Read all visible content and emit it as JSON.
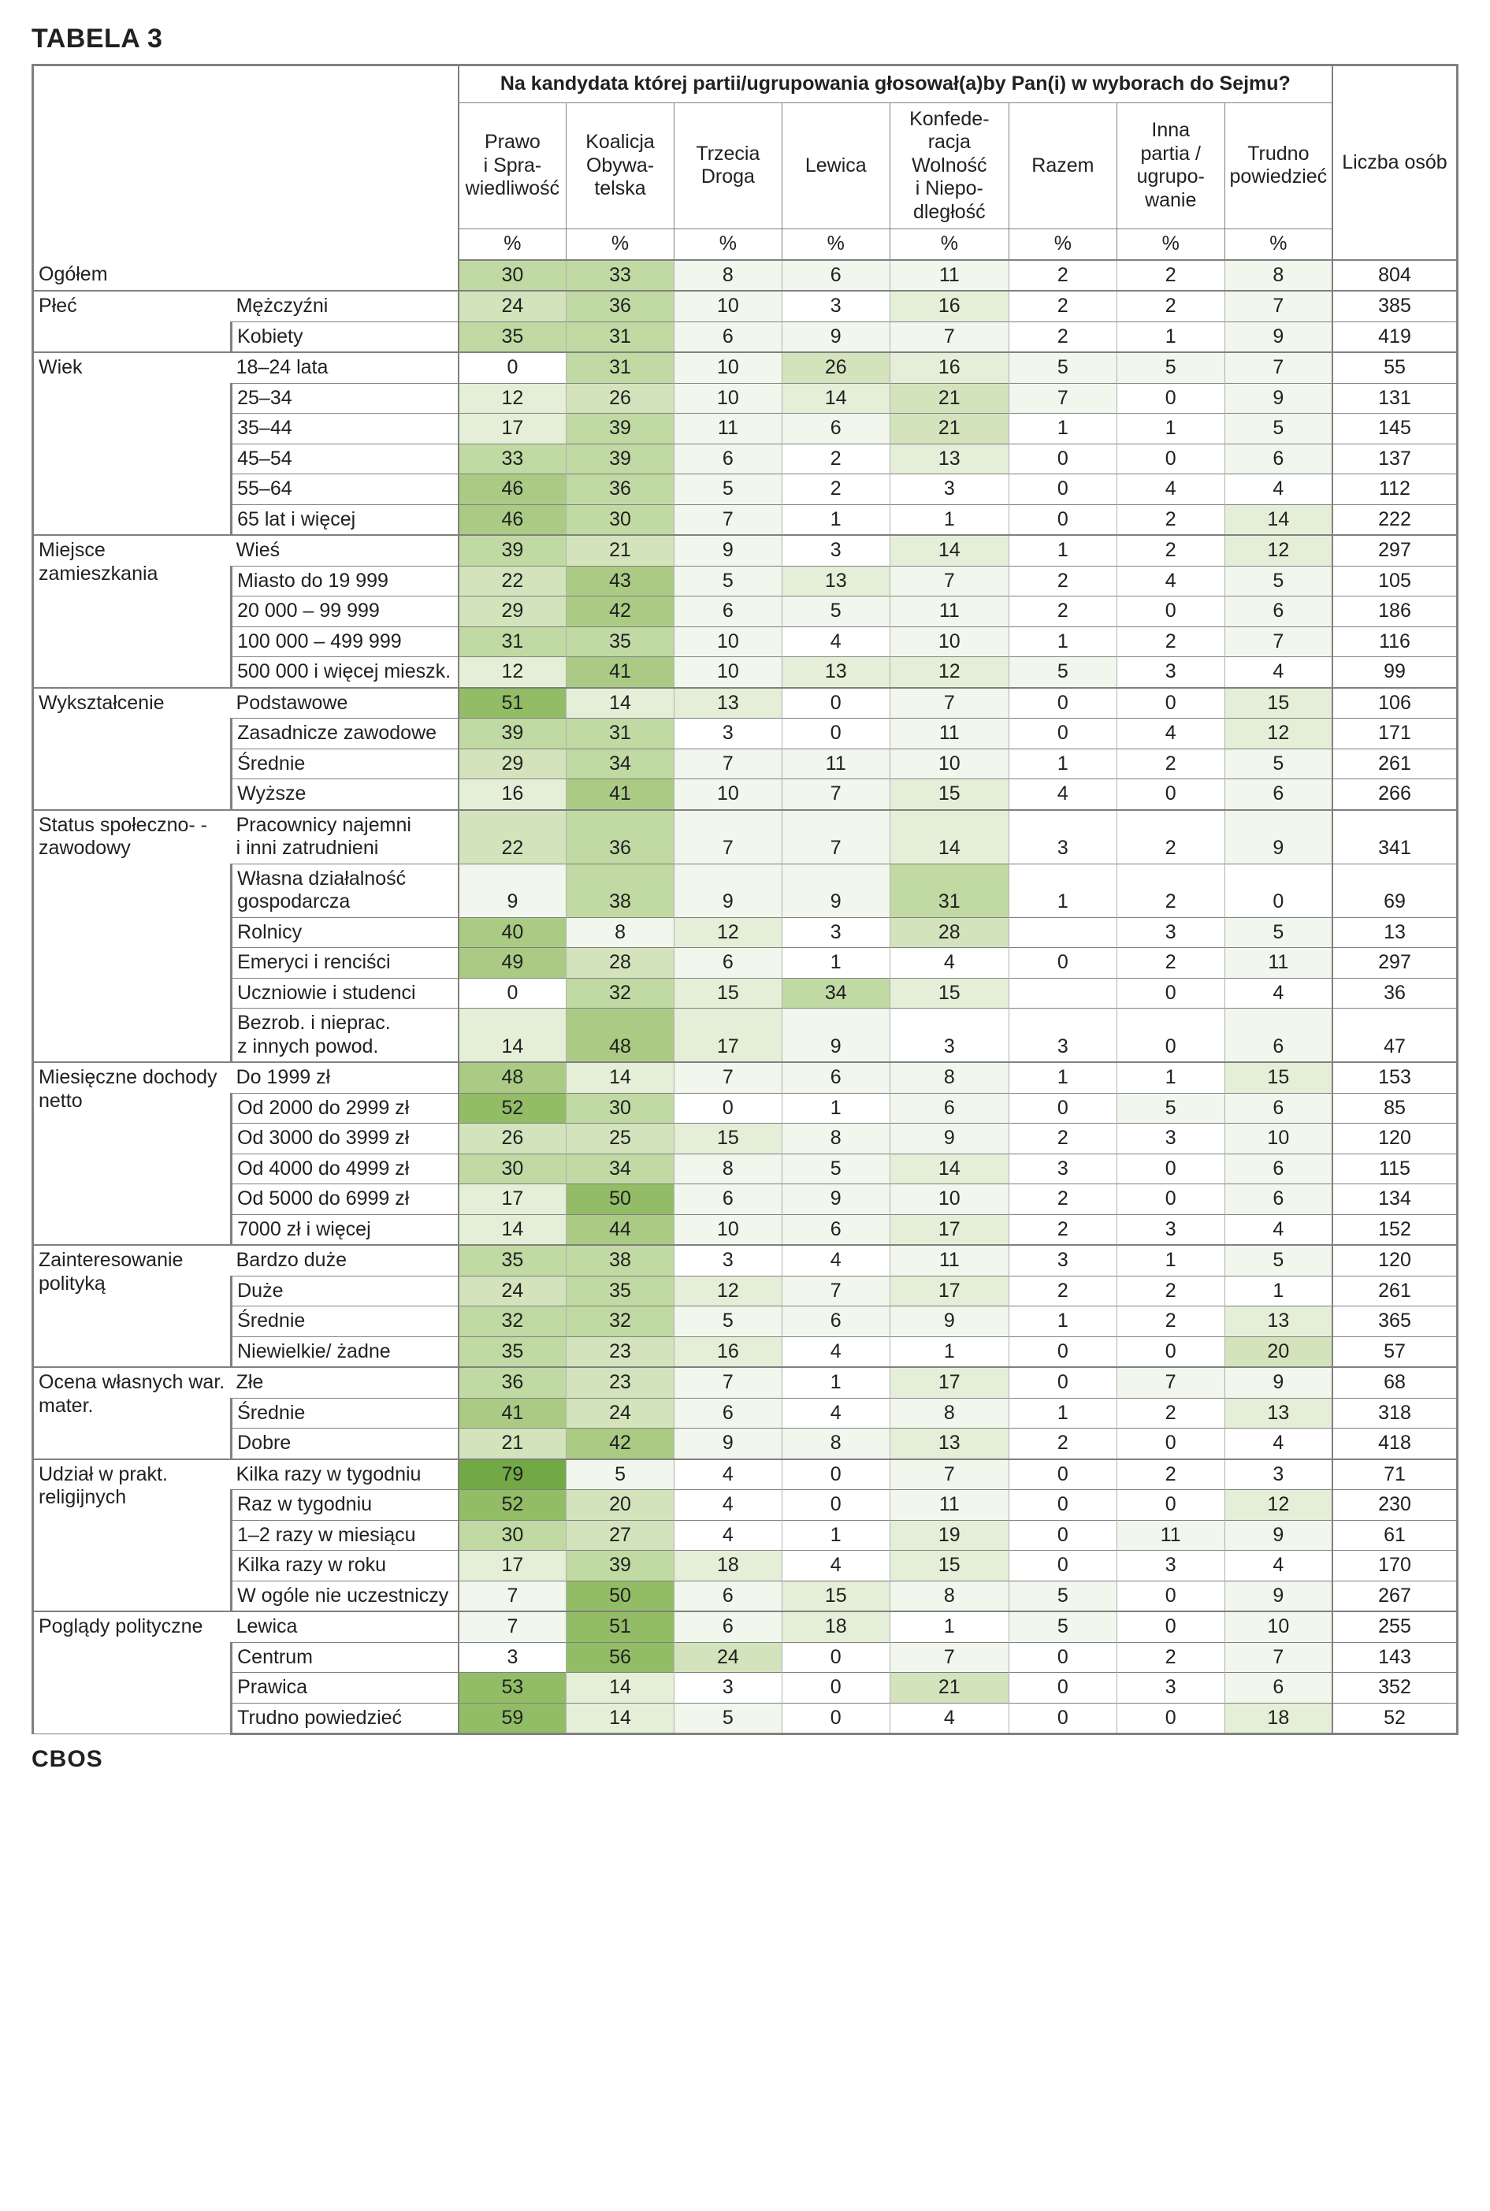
{
  "title": "TABELA 3",
  "footer": "CBOS",
  "question": "Na kandydata której partii/ugrupowania głosował(a)by Pan(i) w wyborach do Sejmu?",
  "liczba_label": "Liczba osób",
  "pct_symbol": "%",
  "columns": [
    "Prawo i Spra­wiedli­wość",
    "Koalicja Obywa­telska",
    "Trzecia Droga",
    "Lewica",
    "Konfede­racja Wolność i Niepo­dległość",
    "Razem",
    "Inna partia / ugrupo­wanie",
    "Trudno powie­dzieć"
  ],
  "col_widths_pct": [
    14,
    16,
    7.6,
    7.6,
    7.6,
    7.6,
    8.4,
    7.6,
    7.6,
    7.6,
    8.8
  ],
  "heat_scale": {
    "colors": [
      "#ffffff",
      "#f1f7ed",
      "#e5efd8",
      "#d3e4bd",
      "#c1d9a3",
      "#abcb85",
      "#92bd66",
      "#72a946"
    ],
    "thresholds": [
      0,
      5,
      12,
      20,
      30,
      40,
      50,
      60
    ]
  },
  "groups": [
    {
      "label": "",
      "rows": [
        {
          "label": "Ogółem",
          "v": [
            30,
            33,
            8,
            6,
            11,
            2,
            2,
            8
          ],
          "n": 804
        }
      ]
    },
    {
      "label": "Płeć",
      "rows": [
        {
          "label": "Mężczyźni",
          "v": [
            24,
            36,
            10,
            3,
            16,
            2,
            2,
            7
          ],
          "n": 385
        },
        {
          "label": "Kobiety",
          "v": [
            35,
            31,
            6,
            9,
            7,
            2,
            1,
            9
          ],
          "n": 419
        }
      ]
    },
    {
      "label": "Wiek",
      "rows": [
        {
          "label": "18–24 lata",
          "v": [
            0,
            31,
            10,
            26,
            16,
            5,
            5,
            7
          ],
          "n": 55
        },
        {
          "label": "25–34",
          "v": [
            12,
            26,
            10,
            14,
            21,
            7,
            0,
            9
          ],
          "n": 131
        },
        {
          "label": "35–44",
          "v": [
            17,
            39,
            11,
            6,
            21,
            1,
            1,
            5
          ],
          "n": 145
        },
        {
          "label": "45–54",
          "v": [
            33,
            39,
            6,
            2,
            13,
            0,
            0,
            6
          ],
          "n": 137
        },
        {
          "label": "55–64",
          "v": [
            46,
            36,
            5,
            2,
            3,
            0,
            4,
            4
          ],
          "n": 112
        },
        {
          "label": "65 lat i więcej",
          "v": [
            46,
            30,
            7,
            1,
            1,
            0,
            2,
            14
          ],
          "n": 222
        }
      ]
    },
    {
      "label": "Miejsce zamieszkania",
      "rows": [
        {
          "label": "Wieś",
          "v": [
            39,
            21,
            9,
            3,
            14,
            1,
            2,
            12
          ],
          "n": 297
        },
        {
          "label": "Miasto do 19 999",
          "v": [
            22,
            43,
            5,
            13,
            7,
            2,
            4,
            5
          ],
          "n": 105
        },
        {
          "label": "20 000 – 99 999",
          "v": [
            29,
            42,
            6,
            5,
            11,
            2,
            0,
            6
          ],
          "n": 186
        },
        {
          "label": "100 000 – 499 999",
          "v": [
            31,
            35,
            10,
            4,
            10,
            1,
            2,
            7
          ],
          "n": 116
        },
        {
          "label": "500 000 i więcej mieszk.",
          "v": [
            12,
            41,
            10,
            13,
            12,
            5,
            3,
            4
          ],
          "n": 99
        }
      ]
    },
    {
      "label": "Wykształcenie",
      "rows": [
        {
          "label": "Podstawowe",
          "v": [
            51,
            14,
            13,
            0,
            7,
            0,
            0,
            15
          ],
          "n": 106
        },
        {
          "label": "Zasadnicze zawodowe",
          "v": [
            39,
            31,
            3,
            0,
            11,
            0,
            4,
            12
          ],
          "n": 171
        },
        {
          "label": "Średnie",
          "v": [
            29,
            34,
            7,
            11,
            10,
            1,
            2,
            5
          ],
          "n": 261
        },
        {
          "label": "Wyższe",
          "v": [
            16,
            41,
            10,
            7,
            15,
            4,
            0,
            6
          ],
          "n": 266
        }
      ]
    },
    {
      "label": "Status społeczno- -zawodowy",
      "rows": [
        {
          "label": "Pracownicy najemni i inni zatrudnieni",
          "v": [
            22,
            36,
            7,
            7,
            14,
            3,
            2,
            9
          ],
          "n": 341
        },
        {
          "label": "Własna działalność gospodarcza",
          "v": [
            9,
            38,
            9,
            9,
            31,
            1,
            2,
            0
          ],
          "n": 69
        },
        {
          "label": "Rolnicy",
          "v": [
            40,
            8,
            12,
            3,
            28,
            null,
            3,
            5
          ],
          "n": 13
        },
        {
          "label": "Emeryci i renciści",
          "v": [
            49,
            28,
            6,
            1,
            4,
            0,
            2,
            11
          ],
          "n": 297
        },
        {
          "label": "Uczniowie i studenci",
          "v": [
            0,
            32,
            15,
            34,
            15,
            null,
            0,
            4
          ],
          "n": 36
        },
        {
          "label": "Bezrob. i nieprac. z innych powod.",
          "v": [
            14,
            48,
            17,
            9,
            3,
            3,
            0,
            6
          ],
          "n": 47
        }
      ]
    },
    {
      "label": "Miesięczne dochody netto",
      "rows": [
        {
          "label": "Do 1999 zł",
          "v": [
            48,
            14,
            7,
            6,
            8,
            1,
            1,
            15
          ],
          "n": 153
        },
        {
          "label": "Od 2000 do 2999 zł",
          "v": [
            52,
            30,
            0,
            1,
            6,
            0,
            5,
            6
          ],
          "n": 85
        },
        {
          "label": "Od 3000 do 3999 zł",
          "v": [
            26,
            25,
            15,
            8,
            9,
            2,
            3,
            10
          ],
          "n": 120
        },
        {
          "label": "Od 4000 do 4999 zł",
          "v": [
            30,
            34,
            8,
            5,
            14,
            3,
            0,
            6
          ],
          "n": 115
        },
        {
          "label": "Od 5000 do 6999 zł",
          "v": [
            17,
            50,
            6,
            9,
            10,
            2,
            0,
            6
          ],
          "n": 134
        },
        {
          "label": "7000 zł i więcej",
          "v": [
            14,
            44,
            10,
            6,
            17,
            2,
            3,
            4
          ],
          "n": 152
        }
      ]
    },
    {
      "label": "Zaintereso­wanie polityką",
      "rows": [
        {
          "label": "Bardzo duże",
          "v": [
            35,
            38,
            3,
            4,
            11,
            3,
            1,
            5
          ],
          "n": 120
        },
        {
          "label": "Duże",
          "v": [
            24,
            35,
            12,
            7,
            17,
            2,
            2,
            1
          ],
          "n": 261
        },
        {
          "label": "Średnie",
          "v": [
            32,
            32,
            5,
            6,
            9,
            1,
            2,
            13
          ],
          "n": 365
        },
        {
          "label": "Niewielkie/ żadne",
          "v": [
            35,
            23,
            16,
            4,
            1,
            0,
            0,
            20
          ],
          "n": 57
        }
      ]
    },
    {
      "label": "Ocena własnych war. mater.",
      "rows": [
        {
          "label": "Złe",
          "v": [
            36,
            23,
            7,
            1,
            17,
            0,
            7,
            9
          ],
          "n": 68
        },
        {
          "label": "Średnie",
          "v": [
            41,
            24,
            6,
            4,
            8,
            1,
            2,
            13
          ],
          "n": 318
        },
        {
          "label": "Dobre",
          "v": [
            21,
            42,
            9,
            8,
            13,
            2,
            0,
            4
          ],
          "n": 418
        }
      ]
    },
    {
      "label": "Udział w prakt. religijnych",
      "rows": [
        {
          "label": "Kilka razy w tygodniu",
          "v": [
            79,
            5,
            4,
            0,
            7,
            0,
            2,
            3
          ],
          "n": 71
        },
        {
          "label": "Raz w tygodniu",
          "v": [
            52,
            20,
            4,
            0,
            11,
            0,
            0,
            12
          ],
          "n": 230
        },
        {
          "label": "1–2 razy w miesiącu",
          "v": [
            30,
            27,
            4,
            1,
            19,
            0,
            11,
            9
          ],
          "n": 61
        },
        {
          "label": "Kilka razy w roku",
          "v": [
            17,
            39,
            18,
            4,
            15,
            0,
            3,
            4
          ],
          "n": 170
        },
        {
          "label": "W ogóle nie uczestniczy",
          "v": [
            7,
            50,
            6,
            15,
            8,
            5,
            0,
            9
          ],
          "n": 267
        }
      ]
    },
    {
      "label": "Poglądy polityczne",
      "rows": [
        {
          "label": "Lewica",
          "v": [
            7,
            51,
            6,
            18,
            1,
            5,
            0,
            10
          ],
          "n": 255
        },
        {
          "label": "Centrum",
          "v": [
            3,
            56,
            24,
            0,
            7,
            0,
            2,
            7
          ],
          "n": 143
        },
        {
          "label": "Prawica",
          "v": [
            53,
            14,
            3,
            0,
            21,
            0,
            3,
            6
          ],
          "n": 352
        },
        {
          "label": "Trudno powiedzieć",
          "v": [
            59,
            14,
            5,
            0,
            4,
            0,
            0,
            18
          ],
          "n": 52
        }
      ]
    }
  ]
}
